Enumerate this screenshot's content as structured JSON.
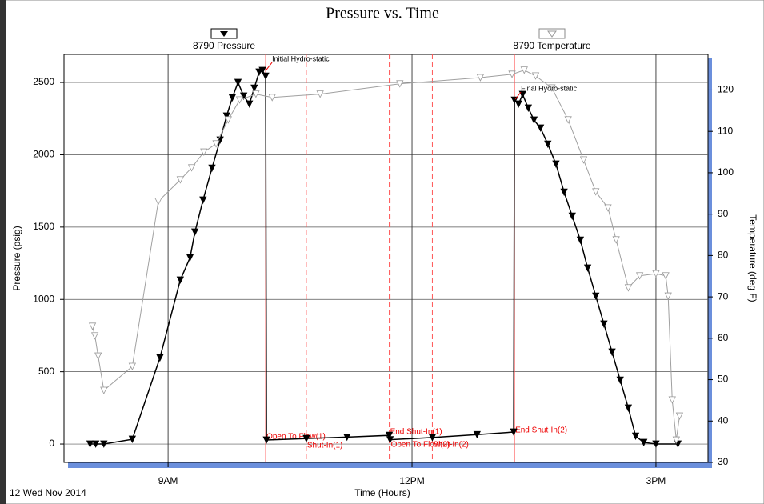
{
  "chart_data": {
    "type": "line",
    "title": "Pressure vs. Time",
    "x_label": "Time (Hours)",
    "y_label": "Pressure (psig)",
    "y2_label": "Temperature (deg F)",
    "date_label": "12 Wed Nov 2014",
    "xlim": [
      7.72,
      15.64
    ],
    "xticks": [
      {
        "value": 9,
        "label": "9AM"
      },
      {
        "value": 12,
        "label": "12PM"
      },
      {
        "value": 15,
        "label": "3PM"
      }
    ],
    "ylim": [
      -127,
      2694
    ],
    "yticks": [
      0,
      500,
      1000,
      1500,
      2000,
      2500
    ],
    "y2lim": [
      30,
      128.6
    ],
    "y2ticks": [
      30,
      40,
      50,
      60,
      70,
      80,
      90,
      100,
      110,
      120
    ],
    "grid": true,
    "series": [
      {
        "name": "8790 Pressure",
        "color": "#000000",
        "marker_fill": true,
        "axis": "y",
        "x": [
          8.04,
          8.11,
          8.21,
          8.56,
          8.9,
          9.15,
          9.27,
          9.33,
          9.43,
          9.54,
          9.64,
          9.72,
          9.79,
          9.86,
          9.93,
          10.0,
          10.06,
          10.12,
          10.16,
          10.2,
          10.21,
          10.7,
          11.2,
          11.72,
          11.73,
          12.25,
          12.8,
          13.25,
          13.26,
          13.31,
          13.36,
          13.43,
          13.5,
          13.58,
          13.67,
          13.77,
          13.87,
          13.97,
          14.07,
          14.16,
          14.26,
          14.36,
          14.46,
          14.56,
          14.66,
          14.75,
          14.85,
          15.0,
          15.27
        ],
        "values": [
          0,
          0,
          0,
          33,
          597,
          1134,
          1289,
          1466,
          1687,
          1908,
          2102,
          2268,
          2395,
          2500,
          2406,
          2351,
          2461,
          2572,
          2583,
          2544,
          28,
          38,
          48,
          60,
          30,
          45,
          65,
          83,
          2378,
          2351,
          2417,
          2323,
          2240,
          2185,
          2074,
          1936,
          1742,
          1576,
          1410,
          1217,
          1023,
          830,
          636,
          442,
          249,
          55,
          11,
          0,
          0
        ]
      },
      {
        "name": "8790 Temperature",
        "color": "#a0a0a0",
        "marker_fill": false,
        "axis": "y2",
        "x": [
          8.07,
          8.1,
          8.14,
          8.21,
          8.56,
          8.88,
          9.15,
          9.29,
          9.44,
          9.59,
          9.74,
          9.88,
          10.08,
          10.28,
          10.87,
          11.85,
          12.84,
          13.23,
          13.38,
          13.52,
          13.72,
          13.92,
          14.11,
          14.26,
          14.41,
          14.51,
          14.66,
          14.8,
          15.0,
          15.12,
          15.15,
          15.2,
          15.25,
          15.29
        ],
        "values": [
          62.9,
          60.6,
          55.7,
          47.4,
          53.2,
          93.1,
          98.3,
          101.2,
          105,
          107,
          112.8,
          117.6,
          119,
          118.2,
          119,
          121.5,
          123,
          123.8,
          124.8,
          123.4,
          120.5,
          112.8,
          103.1,
          95.4,
          91.5,
          83.8,
          72.2,
          75.1,
          75.6,
          75.1,
          70.2,
          45.1,
          35.4,
          41.2
        ]
      }
    ],
    "events": [
      {
        "label": "Open To Flow(1)",
        "x": 10.2,
        "dashed": false
      },
      {
        "label": "Shut-In(1)",
        "x": 10.7,
        "dashed": true
      },
      {
        "label": "End Shut-In(1)",
        "x": 11.72,
        "dashed": true
      },
      {
        "label": "Open To Flow(2)",
        "x": 11.73,
        "dashed": true
      },
      {
        "label": "Shut-In(2)",
        "x": 12.25,
        "dashed": true
      },
      {
        "label": "End Shut-In(2)",
        "x": 13.26,
        "dashed": false
      }
    ],
    "annotations": [
      {
        "text": "Initial Hydro-static",
        "x": 10.2,
        "y": 2583
      },
      {
        "text": "Final Hydro-static",
        "x": 13.26,
        "y": 2378
      }
    ]
  }
}
